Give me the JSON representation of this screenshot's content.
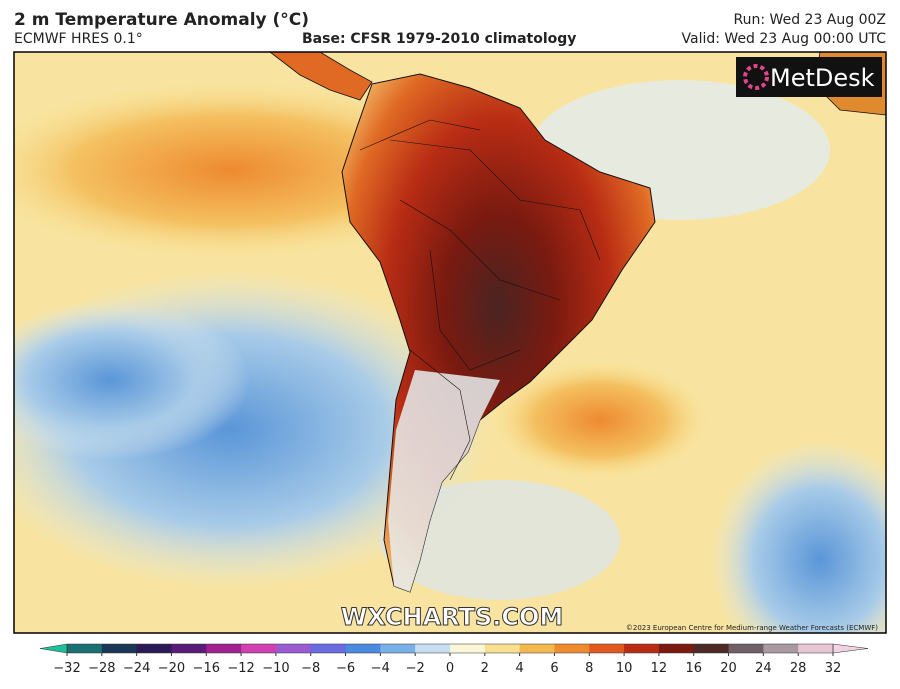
{
  "header": {
    "title": "2 m Temperature Anomaly (°C)",
    "model": "ECMWF HRES 0.1°",
    "base": "Base: CFSR 1979-2010 climatology",
    "run": "Run: Wed 23 Aug 00Z",
    "valid": "Valid: Wed 23 Aug 00:00 UTC"
  },
  "map": {
    "logo": "MetDesk",
    "watermark": "WXCHARTS.COM",
    "credit": "©2023 European Centre for Medium-range Weather Forecasts (ECMWF)"
  },
  "colorbar": {
    "ticks": [
      {
        "value": -32,
        "label": "−32"
      },
      {
        "value": -28,
        "label": "−28"
      },
      {
        "value": -24,
        "label": "−24"
      },
      {
        "value": -20,
        "label": "−20"
      },
      {
        "value": -16,
        "label": "−16"
      },
      {
        "value": -12,
        "label": "−12"
      },
      {
        "value": -10,
        "label": "−10"
      },
      {
        "value": -8,
        "label": "−8"
      },
      {
        "value": -6,
        "label": "−6"
      },
      {
        "value": -4,
        "label": "−4"
      },
      {
        "value": -2,
        "label": "−2"
      },
      0,
      2,
      4,
      6,
      8,
      10,
      12,
      16,
      20,
      24,
      28,
      32
    ],
    "colors": [
      "#1a6f72",
      "#1b3555",
      "#2a1a55",
      "#5a1a7a",
      "#a0208f",
      "#d040b0",
      "#9a5ad0",
      "#6a6ae0",
      "#4a8ae0",
      "#7ab0e8",
      "#c8def2",
      "#fbf6d8",
      "#f8e090",
      "#f4b850",
      "#ee8a30",
      "#e05a20",
      "#b82c14",
      "#7a1a10",
      "#4e2a26",
      "#6e6066",
      "#a89aa0",
      "#e6c6d2"
    ],
    "low_color": "#1ec09a",
    "high_color": "#f2d2e0"
  }
}
